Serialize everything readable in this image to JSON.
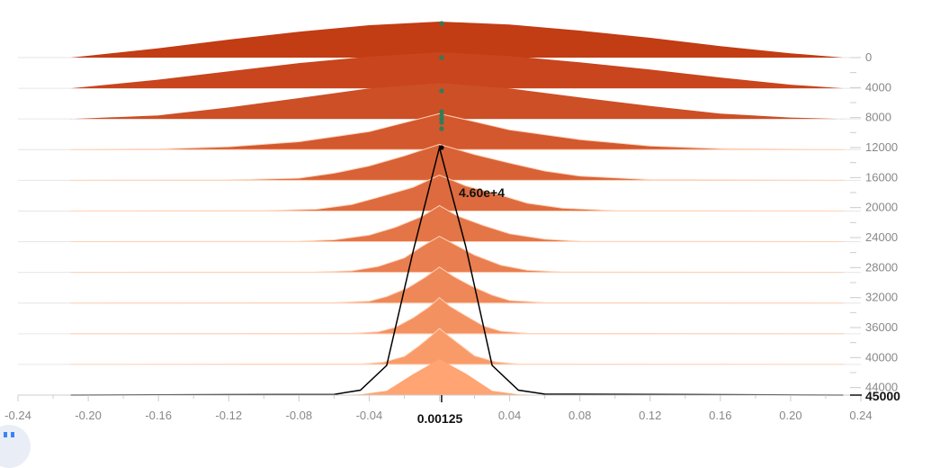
{
  "chart_data": {
    "type": "area",
    "x_ticks": [
      "-0.24",
      "-0.20",
      "-0.16",
      "-0.12",
      "-0.08",
      "-0.04",
      "0.04",
      "0.08",
      "0.12",
      "0.16",
      "0.20",
      "0.24"
    ],
    "y_ticks": [
      "0",
      "4000",
      "8000",
      "12000",
      "16000",
      "20000",
      "24000",
      "28000",
      "32000",
      "36000",
      "40000",
      "44000"
    ],
    "xlim": [
      -0.24,
      0.24
    ],
    "ylim": [
      0,
      45000
    ],
    "hover": {
      "step": 45000,
      "step_label": "45000",
      "x": 0.00125,
      "x_label": "0.00125",
      "value_label": "4.60e+4"
    },
    "series": [
      {
        "step": 0,
        "x": [
          -0.21,
          -0.16,
          -0.12,
          -0.08,
          -0.04,
          0.0,
          0.04,
          0.08,
          0.12,
          0.16,
          0.2,
          0.23
        ],
        "y": [
          0.0,
          0.26,
          0.5,
          0.72,
          0.9,
          1.0,
          0.92,
          0.75,
          0.55,
          0.32,
          0.12,
          0.0
        ]
      },
      {
        "step": 4000,
        "x": [
          -0.21,
          -0.16,
          -0.12,
          -0.08,
          -0.04,
          0.0,
          0.04,
          0.08,
          0.12,
          0.16,
          0.2,
          0.23
        ],
        "y": [
          0.0,
          0.24,
          0.47,
          0.7,
          0.88,
          1.0,
          0.9,
          0.72,
          0.52,
          0.3,
          0.1,
          0.0
        ]
      },
      {
        "step": 8000,
        "x": [
          -0.21,
          -0.16,
          -0.12,
          -0.08,
          -0.04,
          0.0,
          0.04,
          0.08,
          0.12,
          0.16,
          0.2,
          0.23
        ],
        "y": [
          0.0,
          0.1,
          0.32,
          0.58,
          0.85,
          1.0,
          0.85,
          0.6,
          0.36,
          0.15,
          0.04,
          0.0
        ]
      },
      {
        "step": 12000,
        "x": [
          -0.21,
          -0.16,
          -0.12,
          -0.08,
          -0.04,
          -0.02,
          0.0,
          0.02,
          0.04,
          0.08,
          0.12,
          0.16,
          0.2,
          0.23
        ],
        "y": [
          0.0,
          0.02,
          0.08,
          0.22,
          0.5,
          0.75,
          1.0,
          0.78,
          0.55,
          0.28,
          0.1,
          0.03,
          0.01,
          0.0
        ]
      },
      {
        "step": 16000,
        "x": [
          -0.21,
          -0.12,
          -0.08,
          -0.06,
          -0.04,
          -0.02,
          0.0,
          0.02,
          0.04,
          0.06,
          0.08,
          0.12,
          0.23
        ],
        "y": [
          0.0,
          0.01,
          0.06,
          0.2,
          0.4,
          0.68,
          1.0,
          0.72,
          0.48,
          0.26,
          0.12,
          0.02,
          0.0
        ]
      },
      {
        "step": 20000,
        "x": [
          -0.21,
          -0.1,
          -0.07,
          -0.05,
          -0.035,
          -0.015,
          0.0,
          0.015,
          0.035,
          0.05,
          0.07,
          0.1,
          0.23
        ],
        "y": [
          0.0,
          0.01,
          0.05,
          0.18,
          0.38,
          0.66,
          1.0,
          0.7,
          0.44,
          0.22,
          0.08,
          0.01,
          0.0
        ]
      },
      {
        "step": 24000,
        "x": [
          -0.21,
          -0.08,
          -0.06,
          -0.04,
          -0.025,
          -0.01,
          0.0,
          0.01,
          0.025,
          0.04,
          0.06,
          0.08,
          0.23
        ],
        "y": [
          0.0,
          0.01,
          0.05,
          0.18,
          0.4,
          0.7,
          1.0,
          0.72,
          0.45,
          0.22,
          0.07,
          0.01,
          0.0
        ]
      },
      {
        "step": 28000,
        "x": [
          -0.21,
          -0.07,
          -0.05,
          -0.035,
          -0.02,
          -0.01,
          0.0,
          0.01,
          0.02,
          0.035,
          0.05,
          0.07,
          0.23
        ],
        "y": [
          0.0,
          0.01,
          0.04,
          0.16,
          0.4,
          0.72,
          1.0,
          0.74,
          0.48,
          0.2,
          0.06,
          0.01,
          0.0
        ]
      },
      {
        "step": 32000,
        "x": [
          -0.21,
          -0.06,
          -0.04,
          -0.03,
          -0.018,
          -0.008,
          0.0,
          0.008,
          0.018,
          0.03,
          0.04,
          0.06,
          0.23
        ],
        "y": [
          0.0,
          0.01,
          0.05,
          0.18,
          0.42,
          0.72,
          1.0,
          0.74,
          0.48,
          0.22,
          0.07,
          0.01,
          0.0
        ]
      },
      {
        "step": 36000,
        "x": [
          -0.21,
          -0.05,
          -0.035,
          -0.025,
          -0.015,
          -0.006,
          0.0,
          0.006,
          0.015,
          0.025,
          0.035,
          0.05,
          0.23
        ],
        "y": [
          0.0,
          0.01,
          0.05,
          0.18,
          0.44,
          0.74,
          1.0,
          0.76,
          0.5,
          0.22,
          0.07,
          0.01,
          0.0
        ]
      },
      {
        "step": 40000,
        "x": [
          -0.21,
          -0.045,
          -0.032,
          -0.02,
          -0.012,
          -0.005,
          0.0,
          0.005,
          0.012,
          0.02,
          0.032,
          0.045,
          0.23
        ],
        "y": [
          0.0,
          0.01,
          0.06,
          0.22,
          0.5,
          0.78,
          1.0,
          0.8,
          0.54,
          0.24,
          0.07,
          0.01,
          0.0
        ]
      },
      {
        "step": 45000,
        "x": [
          -0.21,
          -0.06,
          -0.045,
          -0.03,
          -0.015,
          0.0,
          0.015,
          0.03,
          0.045,
          0.06,
          0.23
        ],
        "y": [
          0.0,
          0.003,
          0.02,
          0.12,
          0.58,
          1.0,
          0.6,
          0.12,
          0.02,
          0.004,
          0.0
        ]
      }
    ],
    "colors": {
      "top": "#c23c14",
      "bottom": "#ffa472",
      "ridge_line": "#ffd2b8",
      "hover_line": "#000000",
      "dot": "#2e7d5b",
      "axis": "#cccccc",
      "tick_text": "#888888"
    }
  }
}
